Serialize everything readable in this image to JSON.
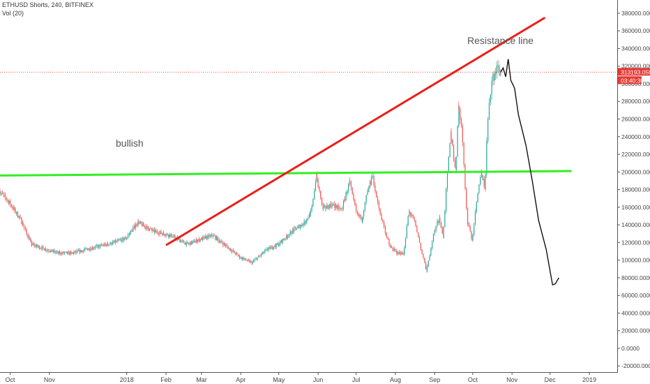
{
  "header": {
    "title": "ETHUSD Shorts, 240, BITFINEX",
    "volume_label": "Vol (20)"
  },
  "colors": {
    "up": "#26a69a",
    "down": "#ef5350",
    "resistance": "#e8201a",
    "support": "#33ee22",
    "drawing": "#111111",
    "price_tag": "#e53935"
  },
  "chart_data": {
    "type": "candlestick",
    "title": "ETHUSD Shorts, 240, BITFINEX",
    "xlabel": "",
    "ylabel": "",
    "x_ticks": [
      "Oct",
      "Nov",
      "2018",
      "Feb",
      "Mar",
      "Apr",
      "May",
      "Jun",
      "Jul",
      "Aug",
      "Sep",
      "Oct",
      "Nov",
      "Dec",
      "2019"
    ],
    "y_ticks": [
      380000,
      360000,
      340000,
      320000,
      300000,
      280000,
      260000,
      240000,
      220000,
      200000,
      180000,
      160000,
      140000,
      120000,
      100000,
      80000,
      60000,
      40000,
      20000,
      0,
      -20000
    ],
    "y_tick_labels": [
      "380000.0000",
      "360000.0000",
      "340000.0000",
      "320000.0000",
      "300000.0000",
      "280000.0000",
      "260000.0000",
      "240000.0000",
      "220000.0000",
      "200000.0000",
      "180000.0000",
      "160000.0000",
      "140000.0000",
      "120000.0000",
      "100000.0000",
      "80000.0000",
      "60000.0000",
      "40000.0000",
      "20000.0000",
      "0.0000",
      "-20000.0000"
    ],
    "ylim": [
      -27000,
      395000
    ],
    "grid": false,
    "current_price": 313193.0594,
    "current_price_label": "313193.0594",
    "countdown_label": "03:40:30",
    "price_path": [
      [
        "2017-09-23",
        178000
      ],
      [
        "2017-10-01",
        165000
      ],
      [
        "2017-10-10",
        145000
      ],
      [
        "2017-10-18",
        118000
      ],
      [
        "2017-10-28",
        113000
      ],
      [
        "2017-11-08",
        108000
      ],
      [
        "2017-11-20",
        108000
      ],
      [
        "2017-12-05",
        114000
      ],
      [
        "2017-12-20",
        119000
      ],
      [
        "2018-01-01",
        125000
      ],
      [
        "2018-01-10",
        143000
      ],
      [
        "2018-01-22",
        133000
      ],
      [
        "2018-02-05",
        128000
      ],
      [
        "2018-02-18",
        118000
      ],
      [
        "2018-03-01",
        124000
      ],
      [
        "2018-03-10",
        128000
      ],
      [
        "2018-03-20",
        117000
      ],
      [
        "2018-04-01",
        103000
      ],
      [
        "2018-04-10",
        97000
      ],
      [
        "2018-04-22",
        112000
      ],
      [
        "2018-05-01",
        118000
      ],
      [
        "2018-05-12",
        133000
      ],
      [
        "2018-05-22",
        143000
      ],
      [
        "2018-05-27",
        155000
      ],
      [
        "2018-05-31",
        196000
      ],
      [
        "2018-06-05",
        158000
      ],
      [
        "2018-06-12",
        163000
      ],
      [
        "2018-06-20",
        157000
      ],
      [
        "2018-06-26",
        188000
      ],
      [
        "2018-07-01",
        160000
      ],
      [
        "2018-07-06",
        143000
      ],
      [
        "2018-07-10",
        176000
      ],
      [
        "2018-07-14",
        196000
      ],
      [
        "2018-07-20",
        155000
      ],
      [
        "2018-07-28",
        115000
      ],
      [
        "2018-08-03",
        108000
      ],
      [
        "2018-08-08",
        108000
      ],
      [
        "2018-08-12",
        155000
      ],
      [
        "2018-08-17",
        143000
      ],
      [
        "2018-08-22",
        110000
      ],
      [
        "2018-08-26",
        88000
      ],
      [
        "2018-09-01",
        133000
      ],
      [
        "2018-09-05",
        148000
      ],
      [
        "2018-09-08",
        127000
      ],
      [
        "2018-09-11",
        188000
      ],
      [
        "2018-09-14",
        245000
      ],
      [
        "2018-09-18",
        200000
      ],
      [
        "2018-09-20",
        275000
      ],
      [
        "2018-09-23",
        248000
      ],
      [
        "2018-09-27",
        145000
      ],
      [
        "2018-10-01",
        122000
      ],
      [
        "2018-10-05",
        172000
      ],
      [
        "2018-10-08",
        198000
      ],
      [
        "2018-10-11",
        182000
      ],
      [
        "2018-10-13",
        250000
      ],
      [
        "2018-10-16",
        300000
      ],
      [
        "2018-10-19",
        313000
      ],
      [
        "2018-10-21",
        318000
      ],
      [
        "2018-10-23",
        313193
      ]
    ],
    "drawings": {
      "resistance_line": {
        "label": "Resistance line",
        "start": [
          "2018-02-01",
          117000
        ],
        "end": [
          "2018-11-27",
          375000
        ]
      },
      "support_line": {
        "start": [
          "2017-09-23",
          196000
        ],
        "end": [
          "2018-12-18",
          201000
        ]
      },
      "projection_path": [
        [
          "2018-10-23",
          313000
        ],
        [
          "2018-10-25",
          318000
        ],
        [
          "2018-10-27",
          308000
        ],
        [
          "2018-10-29",
          328000
        ],
        [
          "2018-10-31",
          304000
        ],
        [
          "2018-11-03",
          295000
        ],
        [
          "2018-11-06",
          265000
        ],
        [
          "2018-11-12",
          230000
        ],
        [
          "2018-11-17",
          190000
        ],
        [
          "2018-11-22",
          145000
        ],
        [
          "2018-11-28",
          112000
        ],
        [
          "2018-12-03",
          72000
        ],
        [
          "2018-12-05",
          73000
        ],
        [
          "2018-12-08",
          80000
        ]
      ],
      "bullish_label": "bullish"
    }
  }
}
